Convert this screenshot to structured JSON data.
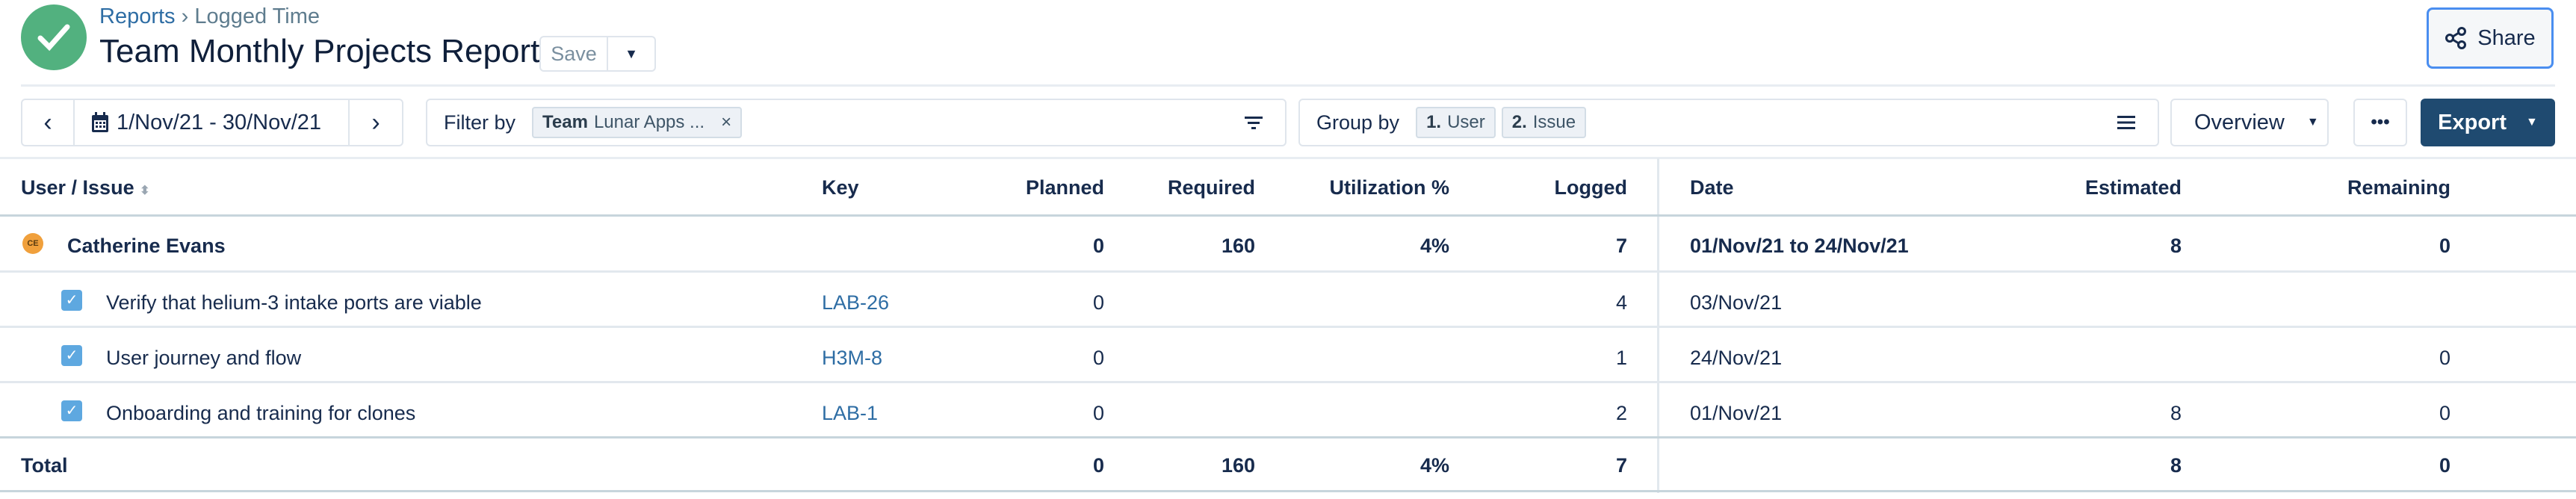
{
  "header": {
    "breadcrumb": {
      "parent": "Reports",
      "separator": "›",
      "current": "Logged Time"
    },
    "title": "Team Monthly Projects Report",
    "save_label": "Save",
    "share_label": "Share"
  },
  "toolbar": {
    "date_range": "1/Nov/21 - 30/Nov/21",
    "filter_label": "Filter by",
    "filter_chip": {
      "field": "Team",
      "value": "Lunar Apps ..."
    },
    "group_label": "Group by",
    "group_chips": [
      {
        "num": "1.",
        "label": "User"
      },
      {
        "num": "2.",
        "label": "Issue"
      }
    ],
    "view_label": "Overview",
    "export_label": "Export"
  },
  "table": {
    "columns": {
      "user_issue": "User / Issue",
      "key": "Key",
      "planned": "Planned",
      "required": "Required",
      "utilization": "Utilization %",
      "logged": "Logged",
      "date": "Date",
      "estimated": "Estimated",
      "remaining": "Remaining"
    },
    "user": {
      "initials": "CE",
      "name": "Catherine Evans",
      "planned": "0",
      "required": "160",
      "utilization": "4%",
      "logged": "7",
      "date": "01/Nov/21 to 24/Nov/21",
      "estimated": "8",
      "remaining": "0",
      "avatar_color": "#f0a03c"
    },
    "issues": [
      {
        "title": "Verify that helium-3 intake ports are viable",
        "key": "LAB-26",
        "planned": "0",
        "logged": "4",
        "date": "03/Nov/21",
        "estimated": "",
        "remaining": ""
      },
      {
        "title": "User journey and flow",
        "key": "H3M-8",
        "planned": "0",
        "logged": "1",
        "date": "24/Nov/21",
        "estimated": "",
        "remaining": "0"
      },
      {
        "title": "Onboarding and training for clones",
        "key": "LAB-1",
        "planned": "0",
        "logged": "2",
        "date": "01/Nov/21",
        "estimated": "8",
        "remaining": "0"
      }
    ],
    "total": {
      "label": "Total",
      "planned": "0",
      "required": "160",
      "utilization": "4%",
      "logged": "7",
      "estimated": "8",
      "remaining": "0"
    }
  },
  "colors": {
    "accent": "#1f4a70",
    "success": "#52b17f",
    "link": "#2e6da4"
  }
}
